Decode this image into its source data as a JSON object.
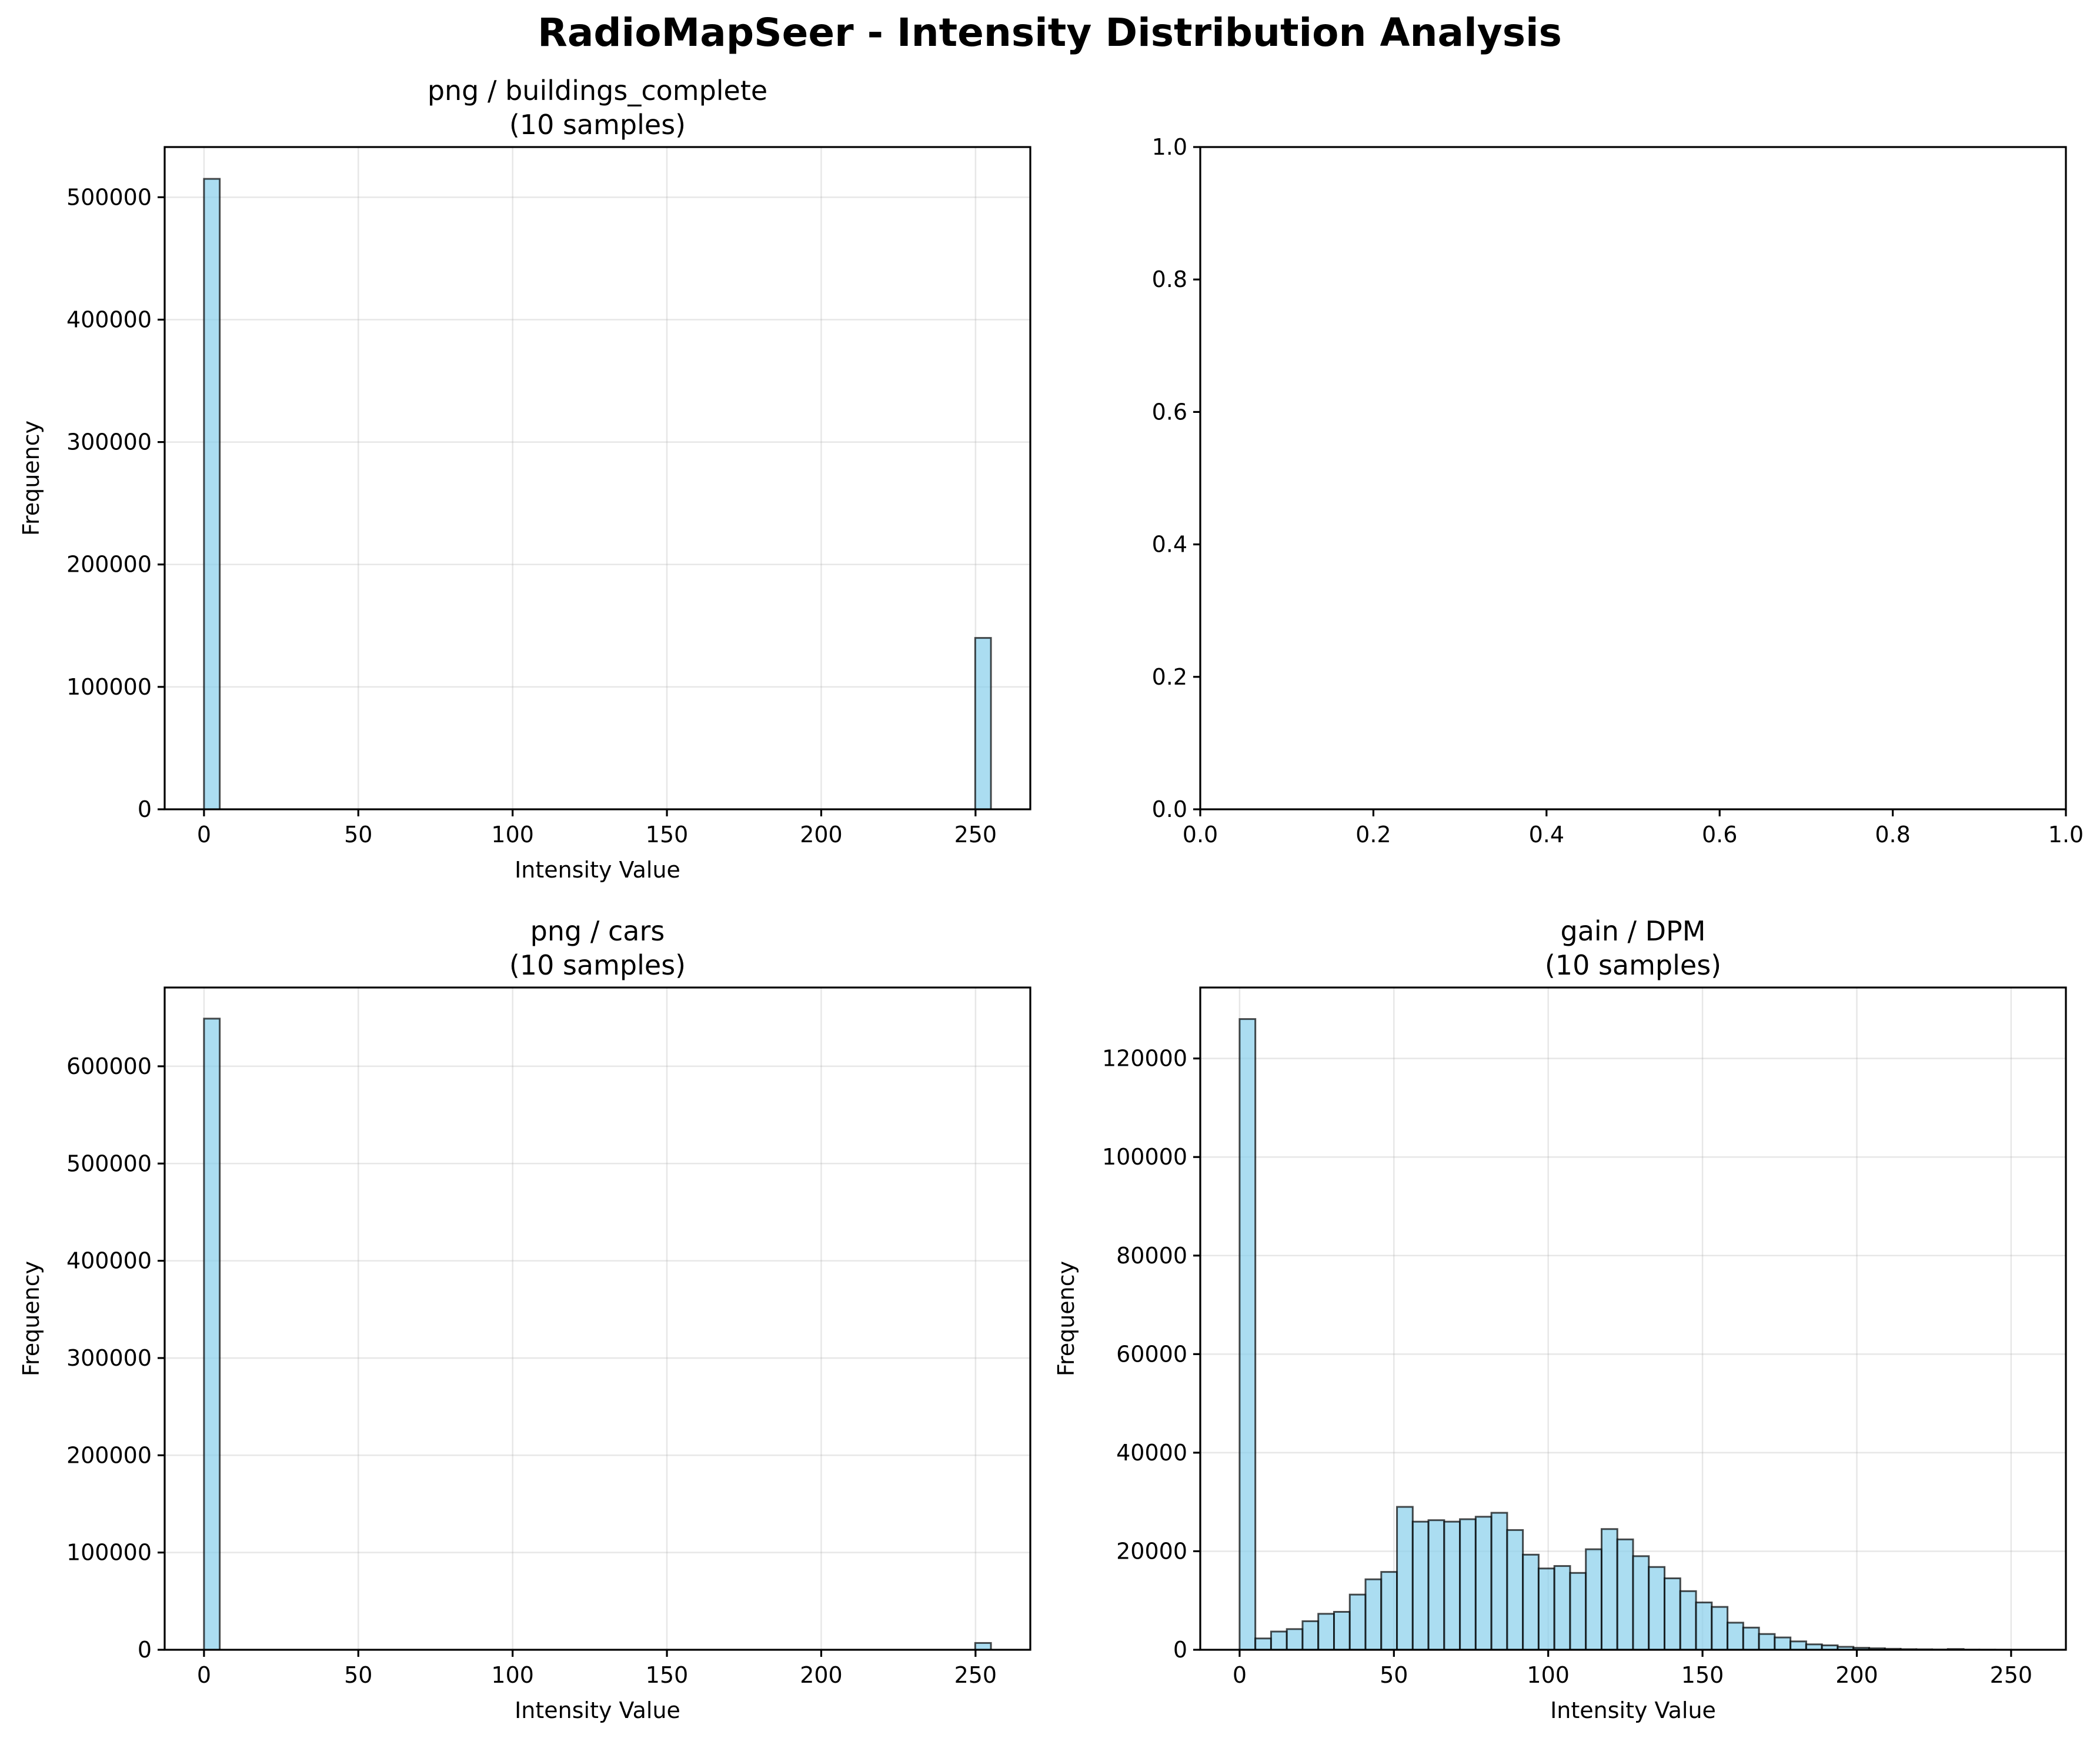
{
  "figure": {
    "title": "RadioMapSeer - Intensity Distribution Analysis"
  },
  "colors": {
    "bar_fill": "#87ceeb",
    "bar_edge": "#000000"
  },
  "chart_data": [
    {
      "type": "bar",
      "title_line1": "png / buildings_complete",
      "title_line2": "(10 samples)",
      "xlabel": "Intensity Value",
      "ylabel": "Frequency",
      "bin_width": 5.1,
      "xlim": [
        -12.75,
        267.75
      ],
      "xticks": [
        0,
        50,
        100,
        150,
        200,
        250
      ],
      "ylim": [
        0,
        541000
      ],
      "yticks": [
        0,
        100000,
        200000,
        300000,
        400000,
        500000
      ],
      "grid": true,
      "bins": [
        [
          0,
          515000
        ],
        [
          249.9,
          140000
        ]
      ]
    },
    {
      "type": "bar",
      "title_line1": "",
      "title_line2": "",
      "xlabel": "",
      "ylabel": "",
      "bin_width": 0,
      "xlim": [
        0,
        1
      ],
      "xticks": [
        0.0,
        0.2,
        0.4,
        0.6,
        0.8,
        1.0
      ],
      "ylim": [
        0,
        1
      ],
      "yticks": [
        0.0,
        0.2,
        0.4,
        0.6,
        0.8,
        1.0
      ],
      "grid": false,
      "bins": []
    },
    {
      "type": "bar",
      "title_line1": "png / cars",
      "title_line2": "(10 samples)",
      "xlabel": "Intensity Value",
      "ylabel": "Frequency",
      "bin_width": 5.1,
      "xlim": [
        -12.75,
        267.75
      ],
      "xticks": [
        0,
        50,
        100,
        150,
        200,
        250
      ],
      "ylim": [
        0,
        681000
      ],
      "yticks": [
        0,
        100000,
        200000,
        300000,
        400000,
        500000,
        600000
      ],
      "grid": true,
      "bins": [
        [
          0,
          649000
        ],
        [
          249.9,
          7000
        ]
      ]
    },
    {
      "type": "bar",
      "title_line1": "gain / DPM",
      "title_line2": "(10 samples)",
      "xlabel": "Intensity Value",
      "ylabel": "Frequency",
      "bin_width": 5.1,
      "xlim": [
        -12.75,
        267.75
      ],
      "xticks": [
        0,
        50,
        100,
        150,
        200,
        250
      ],
      "ylim": [
        0,
        134400
      ],
      "yticks": [
        0,
        20000,
        40000,
        60000,
        80000,
        100000,
        120000
      ],
      "grid": true,
      "bins": [
        [
          0,
          128000
        ],
        [
          5.1,
          2300
        ],
        [
          10.2,
          3700
        ],
        [
          15.3,
          4200
        ],
        [
          20.4,
          5800
        ],
        [
          25.5,
          7300
        ],
        [
          30.6,
          7700
        ],
        [
          35.7,
          11200
        ],
        [
          40.8,
          14300
        ],
        [
          45.9,
          15800
        ],
        [
          51.0,
          29000
        ],
        [
          56.1,
          26000
        ],
        [
          61.2,
          26300
        ],
        [
          66.3,
          26000
        ],
        [
          71.4,
          26500
        ],
        [
          76.5,
          27000
        ],
        [
          81.6,
          27800
        ],
        [
          86.7,
          24300
        ],
        [
          91.8,
          19300
        ],
        [
          96.9,
          16500
        ],
        [
          102.0,
          17000
        ],
        [
          107.1,
          15600
        ],
        [
          112.2,
          20400
        ],
        [
          117.3,
          24500
        ],
        [
          122.4,
          22400
        ],
        [
          127.5,
          19000
        ],
        [
          132.6,
          16800
        ],
        [
          137.7,
          14500
        ],
        [
          142.8,
          11900
        ],
        [
          147.9,
          9600
        ],
        [
          153.0,
          8700
        ],
        [
          158.1,
          5500
        ],
        [
          163.2,
          4500
        ],
        [
          168.3,
          3200
        ],
        [
          173.4,
          2500
        ],
        [
          178.5,
          1700
        ],
        [
          183.6,
          1100
        ],
        [
          188.7,
          900
        ],
        [
          193.8,
          600
        ],
        [
          198.9,
          400
        ],
        [
          204.0,
          300
        ],
        [
          209.1,
          200
        ],
        [
          214.2,
          120
        ],
        [
          219.3,
          90
        ],
        [
          224.4,
          60
        ],
        [
          229.5,
          150
        ],
        [
          234.6,
          30
        ],
        [
          239.7,
          20
        ],
        [
          244.8,
          10
        ],
        [
          249.9,
          0
        ]
      ]
    }
  ]
}
